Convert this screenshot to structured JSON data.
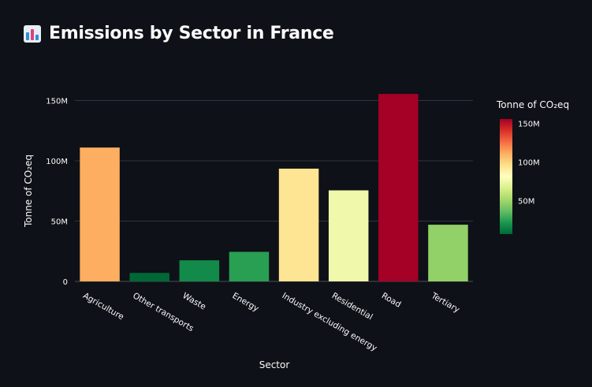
{
  "page": {
    "title": "Emissions by Sector in France",
    "title_icon": "bar-chart-emoji-icon"
  },
  "colors": {
    "background": "#0e1117",
    "grid": "#31333f",
    "text": "#fafafa",
    "colorscale": [
      "#006837",
      "#1a9850",
      "#66bd63",
      "#a6d96a",
      "#d9ef8b",
      "#ffffbf",
      "#fee08b",
      "#fdae61",
      "#f46d43",
      "#d73027",
      "#a50026"
    ]
  },
  "chart_data": {
    "type": "bar",
    "categories": [
      "Agriculture",
      "Other transports",
      "Waste",
      "Energy",
      "Industry excluding energy",
      "Residential",
      "Road",
      "Tertiary"
    ],
    "values": [
      111000000,
      7000000,
      17500000,
      24500000,
      93500000,
      75500000,
      155500000,
      47000000
    ],
    "xlabel": "Sector",
    "ylabel": "Tonne of CO₂eq",
    "ylim": [
      0,
      168000000
    ],
    "yticks": [
      0,
      50000000,
      100000000,
      150000000
    ],
    "ytick_labels": [
      "0",
      "50M",
      "100M",
      "150M"
    ],
    "grid": true,
    "colorbar": {
      "title": "Tonne of CO₂eq",
      "range": [
        7000000,
        155500000
      ],
      "ticks": [
        50000000,
        100000000,
        150000000
      ],
      "tick_labels": [
        "50M",
        "100M",
        "150M"
      ],
      "placement": "right"
    }
  }
}
